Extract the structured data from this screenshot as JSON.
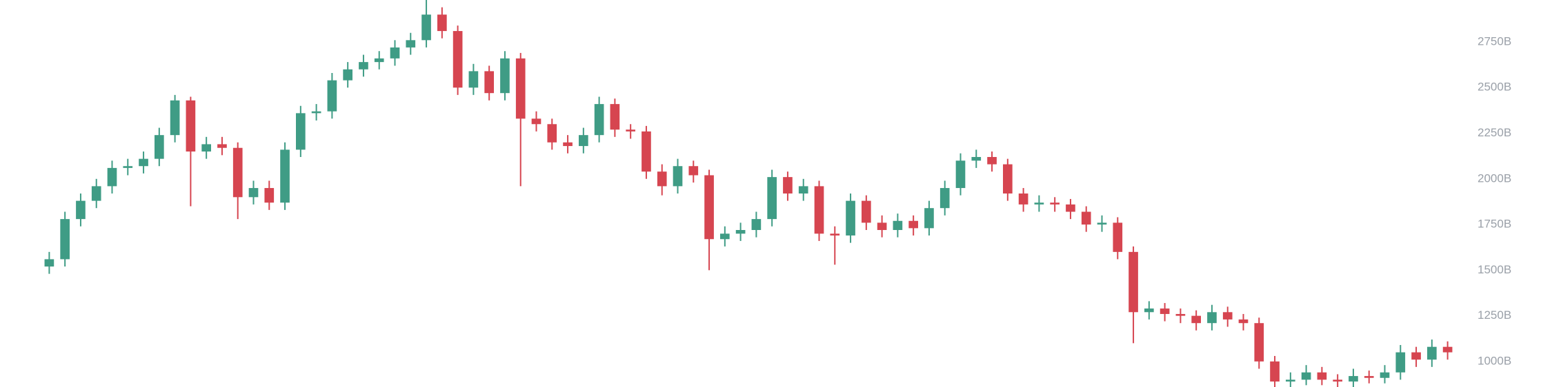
{
  "chart_data": {
    "type": "candlestick",
    "open": [
      1520,
      1560,
      1780,
      1880,
      1960,
      2060,
      2070,
      2110,
      2240,
      2430,
      2150,
      2190,
      2170,
      1900,
      1950,
      1870,
      2160,
      2360,
      2370,
      2540,
      2600,
      2640,
      2660,
      2720,
      2760,
      2900,
      2810,
      2500,
      2590,
      2470,
      2660,
      2330,
      2300,
      2200,
      2180,
      2240,
      2410,
      2270,
      2260,
      2040,
      1960,
      2070,
      2020,
      1670,
      1700,
      1720,
      1780,
      2010,
      1920,
      1960,
      1700,
      1690,
      1880,
      1760,
      1720,
      1770,
      1730,
      1840,
      1950,
      2100,
      2120,
      2080,
      1920,
      1860,
      1870,
      1860,
      1820,
      1750,
      1760,
      1600,
      1270,
      1290,
      1260,
      1250,
      1210,
      1270,
      1230,
      1210,
      1000,
      890,
      900,
      940,
      900,
      890,
      920,
      910,
      940,
      1050,
      1010,
      1080
    ],
    "high": [
      1600,
      1820,
      1920,
      2000,
      2100,
      2110,
      2150,
      2280,
      2460,
      2450,
      2230,
      2230,
      2200,
      1990,
      1990,
      2200,
      2400,
      2410,
      2580,
      2640,
      2680,
      2700,
      2760,
      2800,
      2980,
      2940,
      2840,
      2630,
      2620,
      2700,
      2690,
      2370,
      2330,
      2240,
      2280,
      2450,
      2440,
      2300,
      2290,
      2080,
      2110,
      2100,
      2050,
      1740,
      1760,
      1820,
      2050,
      2040,
      2000,
      1990,
      1740,
      1920,
      1910,
      1800,
      1810,
      1800,
      1880,
      1990,
      2140,
      2160,
      2150,
      2110,
      1950,
      1910,
      1900,
      1890,
      1850,
      1800,
      1790,
      1630,
      1330,
      1320,
      1290,
      1280,
      1310,
      1300,
      1260,
      1240,
      1030,
      940,
      980,
      970,
      930,
      960,
      950,
      980,
      1090,
      1080,
      1120,
      1110
    ],
    "low": [
      1480,
      1520,
      1740,
      1840,
      1920,
      2020,
      2030,
      2070,
      2200,
      1850,
      2110,
      2130,
      1780,
      1860,
      1830,
      1830,
      2120,
      2320,
      2330,
      2500,
      2560,
      2600,
      2620,
      2680,
      2720,
      2770,
      2460,
      2460,
      2430,
      2430,
      1960,
      2260,
      2160,
      2140,
      2140,
      2200,
      2230,
      2220,
      2000,
      1910,
      1920,
      1980,
      1500,
      1630,
      1660,
      1680,
      1740,
      1880,
      1880,
      1660,
      1530,
      1650,
      1720,
      1680,
      1680,
      1690,
      1690,
      1800,
      1910,
      2060,
      2040,
      1880,
      1820,
      1820,
      1820,
      1780,
      1710,
      1710,
      1560,
      1100,
      1230,
      1220,
      1210,
      1170,
      1170,
      1190,
      1170,
      960,
      860,
      860,
      870,
      870,
      860,
      860,
      880,
      880,
      900,
      970,
      970,
      1010
    ],
    "close": [
      1560,
      1780,
      1880,
      1960,
      2060,
      2070,
      2110,
      2240,
      2430,
      2150,
      2190,
      2170,
      1900,
      1950,
      1870,
      2160,
      2360,
      2370,
      2540,
      2600,
      2640,
      2660,
      2720,
      2760,
      2900,
      2810,
      2500,
      2590,
      2470,
      2660,
      2330,
      2300,
      2200,
      2180,
      2240,
      2410,
      2270,
      2260,
      2040,
      1960,
      2070,
      2020,
      1670,
      1700,
      1720,
      1780,
      2010,
      1920,
      1960,
      1700,
      1690,
      1880,
      1760,
      1720,
      1770,
      1730,
      1840,
      1950,
      2100,
      2120,
      2080,
      1920,
      1860,
      1870,
      1860,
      1820,
      1750,
      1760,
      1600,
      1270,
      1290,
      1260,
      1250,
      1210,
      1270,
      1230,
      1210,
      1000,
      890,
      900,
      940,
      900,
      890,
      920,
      910,
      940,
      1050,
      1010,
      1080,
      1050
    ],
    "up_color": "#3f9c85",
    "down_color": "#d64550",
    "ylim": [
      860,
      2980
    ],
    "yticks": [
      {
        "value": 2750,
        "label": "2750B"
      },
      {
        "value": 2500,
        "label": "2500B"
      },
      {
        "value": 2250,
        "label": "2250B"
      },
      {
        "value": 2000,
        "label": "2000B"
      },
      {
        "value": 1750,
        "label": "1750B"
      },
      {
        "value": 1500,
        "label": "1500B"
      },
      {
        "value": 1250,
        "label": "1250B"
      },
      {
        "value": 1000,
        "label": "1000B"
      }
    ],
    "grid": false
  }
}
